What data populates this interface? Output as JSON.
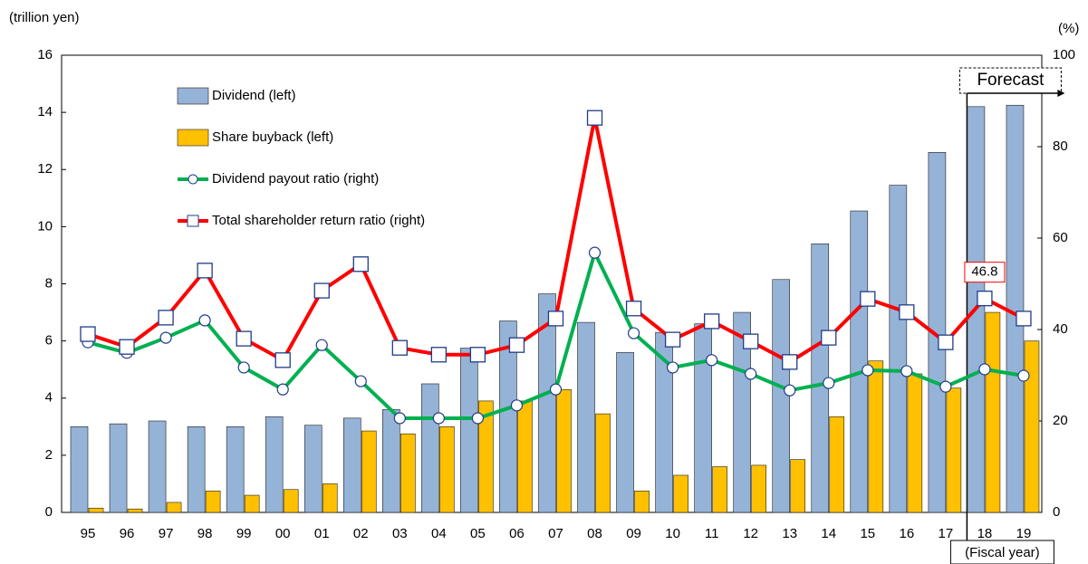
{
  "chart_data": {
    "type": "bar-line",
    "y_label": "(trillion yen)",
    "y2_label": "(%)",
    "x_label": "(Fiscal year)",
    "annotation": "Forecast",
    "categories": [
      "95",
      "96",
      "97",
      "98",
      "99",
      "00",
      "01",
      "02",
      "03",
      "04",
      "05",
      "06",
      "07",
      "08",
      "09",
      "10",
      "11",
      "12",
      "13",
      "14",
      "15",
      "16",
      "17",
      "18",
      "19"
    ],
    "ylim": [
      0,
      16
    ],
    "yticks": [
      0,
      2,
      4,
      6,
      8,
      10,
      12,
      14,
      16
    ],
    "y2lim": [
      0,
      100
    ],
    "y2ticks": [
      0,
      20,
      40,
      60,
      80,
      100
    ],
    "series": [
      {
        "name": "Dividend (left)",
        "type": "bar",
        "color": "#95b3d7",
        "values": [
          3.0,
          3.1,
          3.2,
          3.0,
          3.0,
          3.35,
          3.05,
          3.3,
          3.6,
          4.5,
          5.75,
          6.7,
          7.65,
          6.65,
          5.6,
          6.3,
          6.6,
          7.0,
          8.15,
          9.4,
          10.55,
          11.45,
          12.6,
          14.2,
          14.25
        ]
      },
      {
        "name": "Share buyback (left)",
        "type": "bar",
        "color": "#ffc000",
        "values": [
          0.15,
          0.12,
          0.35,
          0.75,
          0.6,
          0.8,
          1.0,
          2.85,
          2.75,
          3.0,
          3.9,
          3.9,
          4.3,
          3.45,
          0.75,
          1.3,
          1.6,
          1.65,
          1.85,
          3.35,
          5.3,
          4.85,
          4.35,
          7.0,
          6.0
        ]
      },
      {
        "name": "Dividend payout ratio (right)",
        "type": "line",
        "marker": "circle",
        "axis": "y2",
        "color": "#00b050",
        "values": [
          37.2,
          34.9,
          38.2,
          42.0,
          31.7,
          26.9,
          36.6,
          28.7,
          20.6,
          20.6,
          20.6,
          23.4,
          26.9,
          56.8,
          39.2,
          31.7,
          33.3,
          30.3,
          26.7,
          28.3,
          31.1,
          30.9,
          27.5,
          31.3,
          29.9
        ]
      },
      {
        "name": "Total shareholder return ratio (right)",
        "type": "line",
        "marker": "square",
        "axis": "y2",
        "color": "#ff0000",
        "values": [
          39.0,
          36.2,
          42.6,
          52.9,
          38.0,
          33.3,
          48.5,
          54.3,
          36.0,
          34.5,
          34.5,
          36.6,
          42.4,
          86.3,
          44.6,
          37.8,
          41.8,
          37.4,
          32.9,
          38.2,
          46.7,
          43.8,
          37.2,
          46.8,
          42.4
        ],
        "value_labels": [
          null,
          null,
          null,
          null,
          null,
          null,
          null,
          null,
          null,
          null,
          null,
          null,
          null,
          null,
          null,
          null,
          null,
          null,
          null,
          null,
          null,
          null,
          null,
          "46.8",
          null
        ]
      }
    ],
    "forecast_from": 23
  }
}
